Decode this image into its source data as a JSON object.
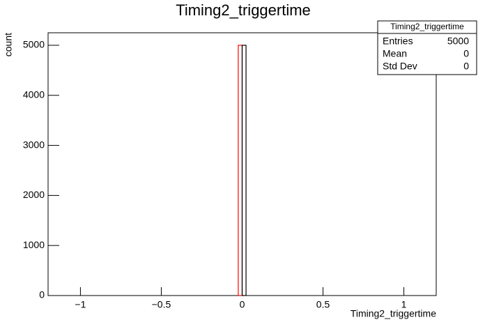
{
  "chart_data": {
    "type": "histogram",
    "title": "Timing2_triggertime",
    "x_label": "Timing2_triggertime",
    "y_label": "count",
    "series": [
      {
        "color": "#ff0000",
        "bins": [
          -1.2,
          -0.024,
          0,
          1.2
        ],
        "values": [
          0,
          5000,
          0
        ]
      },
      {
        "color": "#000000",
        "bins": [
          0,
          0.024
        ],
        "values": [
          5000
        ]
      }
    ],
    "xlim": [
      -1.2,
      1.2
    ],
    "ylim": [
      0,
      5250
    ],
    "xticks": [
      {
        "value": -1,
        "label": "−1"
      },
      {
        "value": -0.5,
        "label": "−0.5"
      },
      0,
      0.5,
      1
    ],
    "yticks": [
      0,
      1000,
      2000,
      3000,
      4000,
      5000
    ],
    "stats": {
      "title": "Timing2_triggertime",
      "rows": [
        {
          "label": "Entries",
          "value": 5000
        },
        {
          "label": "Mean",
          "value": 0
        },
        {
          "label": "Std Dev",
          "value": 0
        }
      ]
    }
  }
}
